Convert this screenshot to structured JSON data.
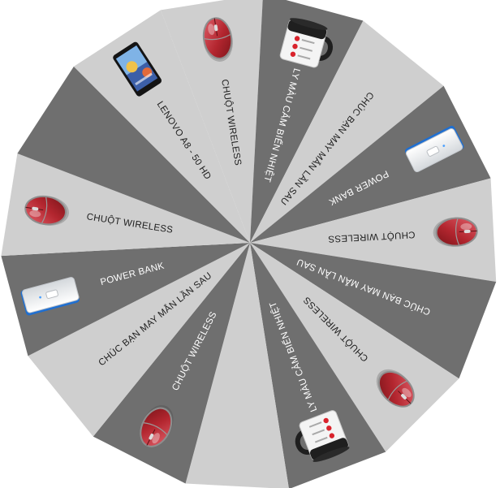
{
  "wheel": {
    "segment_colors": [
      "#cfcfcf",
      "#6f6f6f"
    ],
    "segments": [
      {
        "label": "CHUỘT WIRELESS",
        "prize_icon": "red-mouse-icon"
      },
      {
        "label": "LY MÀU CẢM BIẾN NHIỆT",
        "prize_icon": "color-changing-mug-icon"
      },
      {
        "label": "CHÚC BẠN MAY MẮN LẦN SAU",
        "prize_icon": ""
      },
      {
        "label": "POWER BANK",
        "prize_icon": "power-bank-icon"
      },
      {
        "label": "CHUỘT WIRELESS",
        "prize_icon": "red-mouse-icon"
      },
      {
        "label": "CHÚC BẠN MAY MẮN LẦN SAU",
        "prize_icon": ""
      },
      {
        "label": "CHUỘT WIRELESS",
        "prize_icon": "red-mouse-icon"
      },
      {
        "label": "LY MÀU CẢM BIẾN NHIỆT",
        "prize_icon": "color-changing-mug-icon"
      },
      {
        "label": "",
        "prize_icon": ""
      },
      {
        "label": "CHUỘT WIRELESS",
        "prize_icon": "red-mouse-icon"
      },
      {
        "label": "CHÚC BẠN MAY MẮN LẦN SAU",
        "prize_icon": ""
      },
      {
        "label": "POWER BANK",
        "prize_icon": "power-bank-icon"
      },
      {
        "label": "CHUỘT WIRELESS",
        "prize_icon": "red-mouse-icon"
      },
      {
        "label": "",
        "prize_icon": ""
      },
      {
        "label": "LENOVO A8 - 50 HD",
        "prize_icon": "lenovo-tablet-icon"
      }
    ]
  }
}
